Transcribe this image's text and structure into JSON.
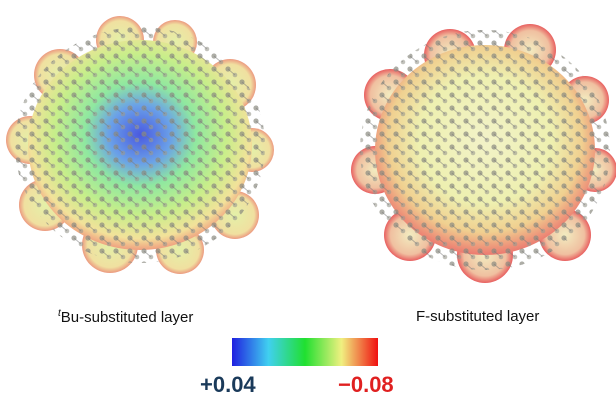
{
  "panels": [
    {
      "label_prefix": "t",
      "label": "Bu-substituted layer"
    },
    {
      "label": "F-substituted layer"
    }
  ],
  "colorbar": {
    "left_label": "+0.04",
    "right_label": "−0.08"
  }
}
